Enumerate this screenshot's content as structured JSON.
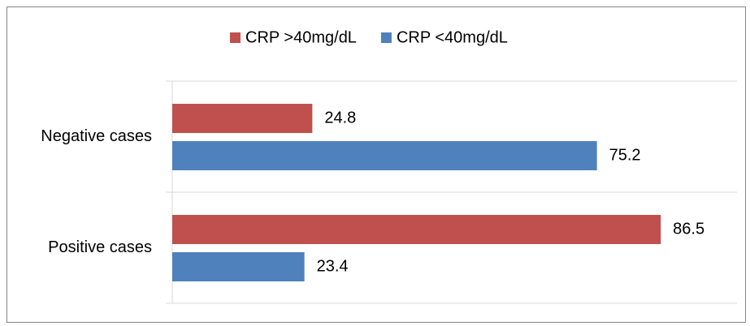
{
  "chart_data": {
    "type": "barh",
    "categories": [
      "Negative cases",
      "Positive cases"
    ],
    "series": [
      {
        "name": "CRP >40mg/dL",
        "color": "#c0504d",
        "values": [
          24.8,
          86.5
        ]
      },
      {
        "name": "CRP <40mg/dL",
        "color": "#4f81bd",
        "values": [
          75.2,
          23.4
        ]
      }
    ],
    "xlim": [
      0,
      100
    ],
    "legend": "top"
  }
}
